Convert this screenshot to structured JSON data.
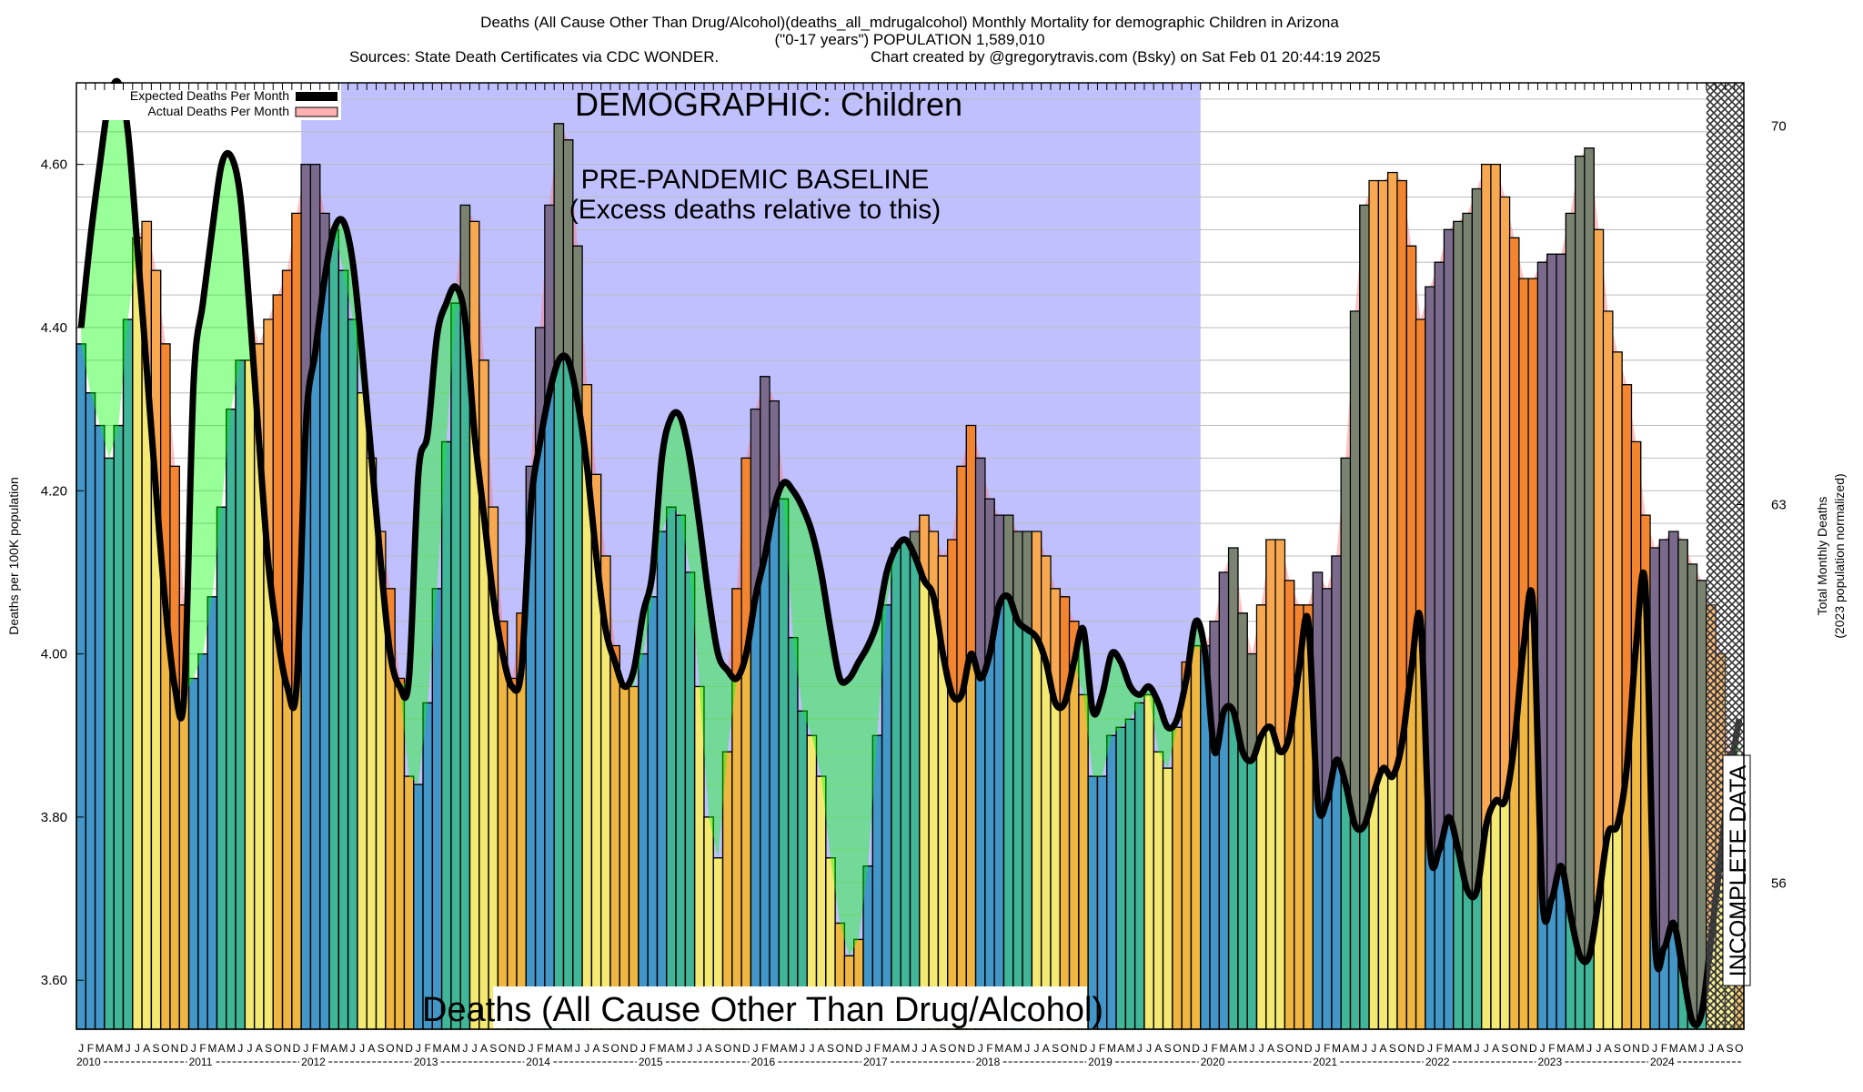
{
  "chart_data": {
    "type": "bar",
    "title_lines": [
      "Deaths (All Cause Other Than Drug/Alcohol)(deaths_all_mdrugalcohol) Monthly Mortality for demographic Children in Arizona",
      "(\"0-17 years\") POPULATION 1,589,010"
    ],
    "sources": "Sources: State Death Certificates via CDC WONDER.",
    "credit": "Chart created by @gregorytravis.com (Bsky) on Sat Feb 01 20:44:19 2025",
    "ylabel": "Deaths per 100K population",
    "y2label_lines": [
      "Total Monthly Deaths",
      "(2023 population normalized)"
    ],
    "ylim": [
      3.54,
      4.7
    ],
    "yticks": [
      "3.60",
      "3.80",
      "4.00",
      "4.20",
      "4.40",
      "4.60"
    ],
    "y2lim": [
      53.3,
      70.8
    ],
    "y2ticks": [
      "56",
      "63",
      "70"
    ],
    "grid": true,
    "grid_step": 0.04,
    "legend_placement": "top-left",
    "legend": [
      {
        "label": "Expected Deaths Per Month",
        "color": "#000000"
      },
      {
        "label": "Actual Deaths Per Month",
        "color": "#ffb0b0"
      }
    ],
    "month_letters": [
      "J",
      "F",
      "M",
      "A",
      "M",
      "J",
      "J",
      "A",
      "S",
      "O",
      "N",
      "D"
    ],
    "years": [
      "2010",
      "2011",
      "2012",
      "2013",
      "2014",
      "2015",
      "2016",
      "2017",
      "2018",
      "2019",
      "2020",
      "2021",
      "2022",
      "2023",
      "2024"
    ],
    "series": [
      {
        "name": "Actual Deaths Per Month",
        "kind": "bar",
        "values": [
          [
            4.38,
            4.32,
            4.28,
            4.24,
            4.28,
            4.41,
            4.51,
            4.53,
            4.47,
            4.38,
            4.23,
            4.06
          ],
          [
            3.97,
            4.0,
            4.07,
            4.18,
            4.3,
            4.36,
            4.36,
            4.38,
            4.41,
            4.44,
            4.47,
            4.54
          ],
          [
            4.6,
            4.6,
            4.54,
            4.52,
            4.47,
            4.41,
            4.32,
            4.24,
            4.15,
            4.08,
            3.97,
            3.85
          ],
          [
            3.84,
            3.94,
            4.08,
            4.26,
            4.43,
            4.55,
            4.53,
            4.36,
            4.18,
            4.04,
            3.97,
            4.05
          ],
          [
            4.23,
            4.4,
            4.55,
            4.65,
            4.63,
            4.5,
            4.33,
            4.22,
            4.12,
            4.01,
            3.96,
            3.96
          ],
          [
            4.0,
            4.07,
            4.15,
            4.18,
            4.17,
            4.1,
            3.96,
            3.8,
            3.75,
            3.88,
            4.08,
            4.24
          ],
          [
            4.3,
            4.34,
            4.31,
            4.19,
            4.02,
            3.93,
            3.9,
            3.85,
            3.75,
            3.67,
            3.63,
            3.65
          ],
          [
            3.74,
            3.9,
            4.06,
            4.13,
            4.14,
            4.15,
            4.17,
            4.15,
            4.12,
            4.14,
            4.23,
            4.28
          ],
          [
            4.24,
            4.19,
            4.17,
            4.17,
            4.15,
            4.15,
            4.15,
            4.12,
            4.08,
            4.07,
            4.04,
            3.95
          ],
          [
            3.85,
            3.85,
            3.9,
            3.91,
            3.92,
            3.94,
            3.95,
            3.88,
            3.86,
            3.91,
            3.99,
            4.01
          ],
          [
            4.01,
            4.04,
            4.1,
            4.13,
            4.05,
            4.0,
            4.06,
            4.14,
            4.14,
            4.09,
            4.06,
            4.06
          ],
          [
            4.1,
            4.08,
            4.12,
            4.24,
            4.42,
            4.55,
            4.58,
            4.58,
            4.59,
            4.58,
            4.5,
            4.41
          ],
          [
            4.45,
            4.48,
            4.52,
            4.53,
            4.54,
            4.57,
            4.6,
            4.6,
            4.56,
            4.51,
            4.46,
            4.46
          ],
          [
            4.48,
            4.49,
            4.49,
            4.54,
            4.61,
            4.62,
            4.52,
            4.42,
            4.37,
            4.33,
            4.26,
            4.17
          ],
          [
            4.13,
            4.14,
            4.15,
            4.14,
            4.11,
            4.09,
            4.06,
            4.0,
            3.88,
            3.76
          ]
        ]
      },
      {
        "name": "Expected Deaths Per Month",
        "kind": "line",
        "values": [
          [
            4.4,
            4.51,
            4.6,
            4.68,
            4.7,
            4.64,
            4.5,
            4.35,
            4.2,
            4.06,
            3.96,
            3.95
          ],
          [
            4.33,
            4.43,
            4.52,
            4.6,
            4.61,
            4.56,
            4.42,
            4.26,
            4.11,
            4.02,
            3.96,
            3.96
          ],
          [
            4.28,
            4.37,
            4.46,
            4.52,
            4.53,
            4.48,
            4.37,
            4.24,
            4.11,
            4.0,
            3.96,
            3.97
          ],
          [
            4.22,
            4.27,
            4.39,
            4.43,
            4.45,
            4.41,
            4.27,
            4.17,
            4.07,
            4.0,
            3.96,
            3.98
          ],
          [
            4.18,
            4.26,
            4.32,
            4.36,
            4.36,
            4.31,
            4.23,
            4.12,
            4.03,
            3.99,
            3.96,
            3.98
          ],
          [
            4.05,
            4.1,
            4.24,
            4.29,
            4.29,
            4.24,
            4.16,
            4.07,
            4.0,
            3.98,
            3.97,
            4.0
          ],
          [
            4.07,
            4.12,
            4.18,
            4.21,
            4.2,
            4.18,
            4.15,
            4.1,
            4.03,
            3.97,
            3.97,
            3.99
          ],
          [
            4.01,
            4.04,
            4.1,
            4.13,
            4.14,
            4.12,
            4.09,
            4.07,
            4.0,
            3.95,
            3.95,
            4.0
          ],
          [
            3.97,
            4.0,
            4.06,
            4.07,
            4.04,
            4.03,
            4.02,
            3.99,
            3.94,
            3.94,
            3.99,
            4.03
          ],
          [
            3.93,
            3.95,
            4.0,
            3.99,
            3.96,
            3.95,
            3.96,
            3.94,
            3.91,
            3.92,
            3.97,
            4.04
          ],
          [
            4.0,
            3.88,
            3.93,
            3.93,
            3.88,
            3.87,
            3.9,
            3.91,
            3.88,
            3.9,
            3.98,
            4.04
          ],
          [
            3.82,
            3.82,
            3.87,
            3.84,
            3.79,
            3.79,
            3.83,
            3.86,
            3.85,
            3.89,
            3.98,
            4.04
          ],
          [
            3.76,
            3.76,
            3.8,
            3.76,
            3.71,
            3.71,
            3.79,
            3.82,
            3.82,
            3.89,
            4.01,
            4.06
          ],
          [
            3.7,
            3.7,
            3.74,
            3.68,
            3.63,
            3.63,
            3.7,
            3.78,
            3.79,
            3.86,
            4.01,
            4.08
          ],
          [
            3.65,
            3.64,
            3.67,
            3.61,
            3.55,
            3.56,
            3.65,
            3.75,
            3.85,
            3.92
          ]
        ]
      }
    ],
    "baseline_period": {
      "from": "2012 J",
      "to": "2019 D",
      "color": "#c0c0ff"
    },
    "incomplete_period": {
      "from": "2024 J",
      "to": "2024 O"
    },
    "annotations": {
      "demographic": "DEMOGRAPHIC: Children",
      "baseline_line1": "PRE-PANDEMIC BASELINE",
      "baseline_line2": "(Excess deaths relative to this)",
      "metric": "Deaths (All Cause Other Than Drug/Alcohol)",
      "incomplete": "INCOMPLETE DATA"
    },
    "colors": {
      "season": [
        "#4396c8",
        "#40b598",
        "#f4e972",
        "#efb741"
      ],
      "excess": [
        "#7b6a8c",
        "#7b8270",
        "#f8a850",
        "#f38430"
      ],
      "deficit_fill": "rgba(0,255,0,0.4)",
      "actual_fill": "rgba(255,120,120,0.45)",
      "expected_line": "#000000"
    }
  }
}
